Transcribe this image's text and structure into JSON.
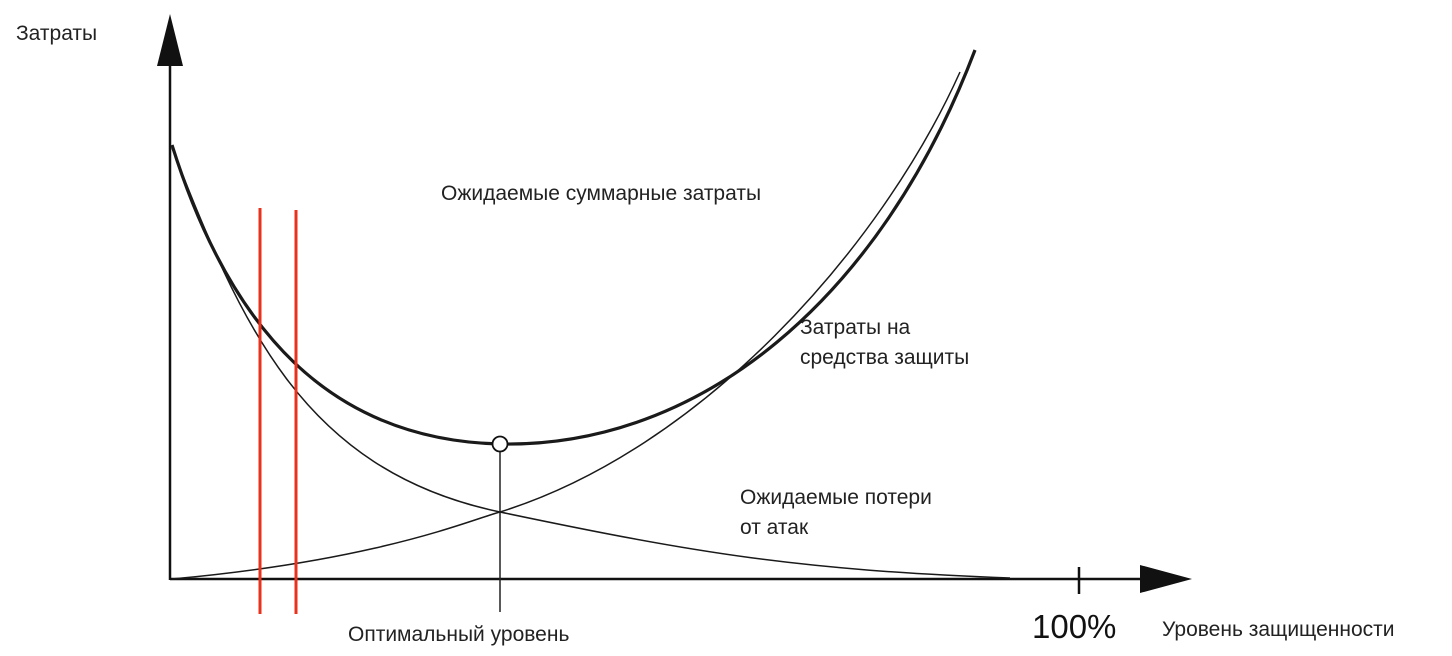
{
  "colors": {
    "curve": "#1a1a1a",
    "axis": "#111111",
    "marker": "#e8321e"
  },
  "labels": {
    "y_axis": "Затраты",
    "x_axis": "Уровень защищенности",
    "total_cost": "Ожидаемые суммарные затраты",
    "protection_cost_line1": "Затраты на",
    "protection_cost_line2": "средства защиты",
    "attack_loss_line1": "Ожидаемые потери",
    "attack_loss_line2": "от атак",
    "optimal": "Оптимальный уровень",
    "hundred_percent": "100%"
  }
}
